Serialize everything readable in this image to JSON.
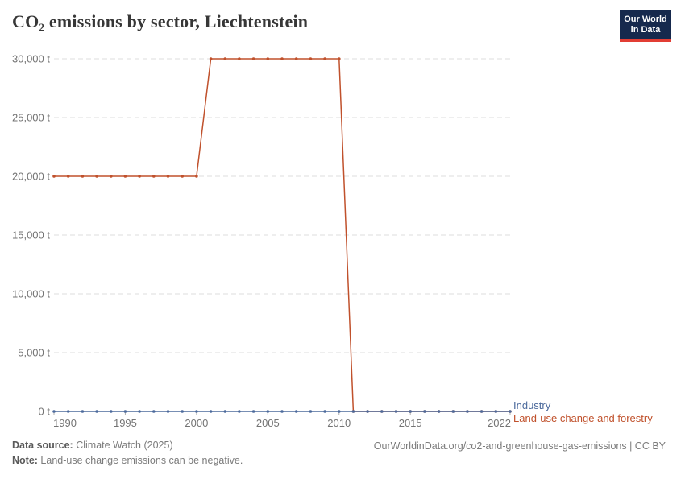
{
  "header": {
    "title": "CO₂ emissions by sector, Liechtenstein"
  },
  "logo": {
    "line1": "Our World",
    "line2": "in Data",
    "bg_color": "#16294D",
    "stripe_color": "#E23D34"
  },
  "chart_data": {
    "type": "line",
    "title": "CO₂ emissions by sector, Liechtenstein",
    "xlabel": "",
    "ylabel": "",
    "unit": "t",
    "xlim": [
      1990,
      2022
    ],
    "ylim": [
      0,
      30000
    ],
    "grid": "horizontal-dashed",
    "legend_position": "right-of-line-end",
    "x": [
      1990,
      1991,
      1992,
      1993,
      1994,
      1995,
      1996,
      1997,
      1998,
      1999,
      2000,
      2001,
      2002,
      2003,
      2004,
      2005,
      2006,
      2007,
      2008,
      2009,
      2010,
      2011,
      2012,
      2013,
      2014,
      2015,
      2016,
      2017,
      2018,
      2019,
      2020,
      2021,
      2022
    ],
    "series": [
      {
        "name": "Land-use change and forestry",
        "color": "#C0512C",
        "values": [
          20000,
          20000,
          20000,
          20000,
          20000,
          20000,
          20000,
          20000,
          20000,
          20000,
          20000,
          30000,
          30000,
          30000,
          30000,
          30000,
          30000,
          30000,
          30000,
          30000,
          30000,
          0,
          0,
          0,
          0,
          0,
          0,
          0,
          0,
          0,
          0,
          0,
          0
        ]
      },
      {
        "name": "Industry",
        "color": "#4C6A9C",
        "values": [
          0,
          0,
          0,
          0,
          0,
          0,
          0,
          0,
          0,
          0,
          0,
          0,
          0,
          0,
          0,
          0,
          0,
          0,
          0,
          0,
          0,
          0,
          0,
          0,
          0,
          0,
          0,
          0,
          0,
          0,
          0,
          0,
          0
        ]
      }
    ],
    "yticks": [
      0,
      5000,
      10000,
      15000,
      20000,
      25000,
      30000
    ],
    "ytick_labels": [
      "0 t",
      "5,000 t",
      "10,000 t",
      "15,000 t",
      "20,000 t",
      "25,000 t",
      "30,000 t"
    ],
    "xticks": [
      1990,
      1995,
      2000,
      2005,
      2010,
      2015,
      2022
    ],
    "xtick_labels": [
      "1990",
      "1995",
      "2000",
      "2005",
      "2010",
      "2015",
      "2022"
    ]
  },
  "legend": {
    "items": [
      {
        "label": "Industry",
        "color": "#4C6A9C"
      },
      {
        "label": "Land-use change and forestry",
        "color": "#C0512C"
      }
    ]
  },
  "footer": {
    "datasource_label": "Data source:",
    "datasource_value": " Climate Watch (2025)",
    "note_label": "Note:",
    "note_value": " Land-use change emissions can be negative.",
    "link": "OurWorldinData.org/co2-and-greenhouse-gas-emissions | CC BY"
  },
  "colors": {
    "gridline": "#dedede",
    "tick_text": "#737373",
    "tick_mark": "#adadad"
  }
}
